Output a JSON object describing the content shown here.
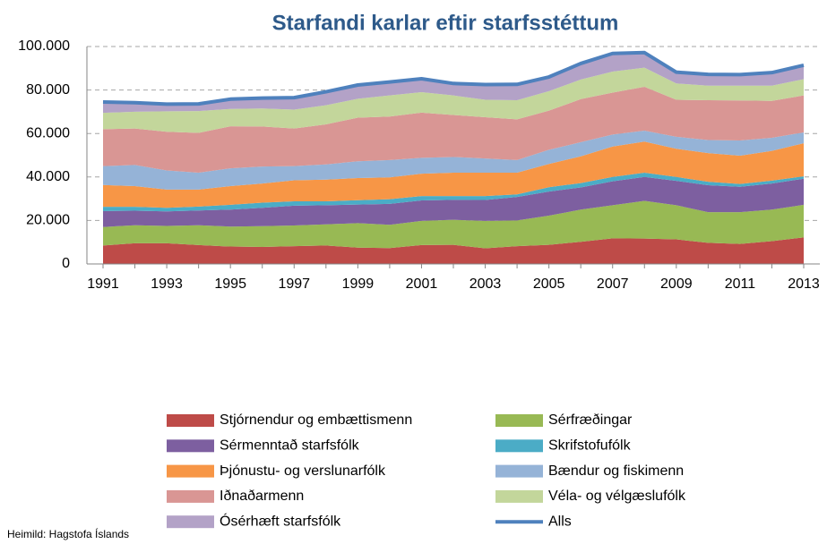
{
  "chart_data": {
    "type": "stacked_area",
    "title": "Starfandi karlar eftir starfsstéttum",
    "note": "Heimild: Hagstofa Íslands",
    "categories": [
      "1991",
      null,
      "1993",
      null,
      "1995",
      null,
      "1997",
      null,
      "1999",
      null,
      "2001",
      null,
      "2003",
      null,
      "2005",
      null,
      "2007",
      null,
      "2009",
      null,
      "2011",
      null,
      "2013"
    ],
    "ylim": [
      0,
      100000
    ],
    "yticks": [
      0,
      {
        "value": 20000,
        "label": "20.000"
      },
      {
        "value": 40000,
        "label": "40.000"
      },
      {
        "value": 60000,
        "label": "60.000"
      },
      {
        "value": 80000,
        "label": "80.000"
      },
      {
        "value": 100000,
        "label": "100.000"
      }
    ],
    "grid": true,
    "series": [
      {
        "name": "Stjórnendur og embættismenn",
        "color": "#be4b48",
        "values": [
          8500,
          9500,
          9500,
          8700,
          8000,
          7800,
          8200,
          8500,
          7500,
          7300,
          8700,
          8800,
          7200,
          8200,
          8800,
          10200,
          11800,
          11700,
          11300,
          9700,
          9200,
          10500,
          12200
        ]
      },
      {
        "name": "Sérfræðingar",
        "color": "#98b954",
        "values": [
          8500,
          8300,
          8000,
          9100,
          9200,
          9600,
          9500,
          9700,
          11300,
          10700,
          11100,
          11500,
          12600,
          11800,
          13400,
          14800,
          15200,
          17300,
          15700,
          14100,
          14600,
          14500,
          15000
        ]
      },
      {
        "name": "Sérmenntað starfsfólk",
        "color": "#7d5fa0",
        "values": [
          7300,
          6700,
          6700,
          6800,
          7800,
          8400,
          9100,
          8800,
          8500,
          9600,
          9400,
          9200,
          9600,
          10800,
          11100,
          10200,
          11000,
          11000,
          11200,
          12400,
          11700,
          12000,
          12000
        ]
      },
      {
        "name": "Skrifstofufólk",
        "color": "#4bacc6",
        "values": [
          2000,
          1800,
          1600,
          1800,
          2200,
          2400,
          2000,
          1800,
          2000,
          2200,
          2000,
          1700,
          1800,
          1200,
          2000,
          2000,
          2000,
          2000,
          1800,
          1600,
          1300,
          1300,
          1100
        ]
      },
      {
        "name": "Þjónustu- og verslunarfólk",
        "color": "#f79646",
        "values": [
          10000,
          9500,
          8400,
          7800,
          8600,
          8800,
          9700,
          10000,
          10200,
          10000,
          10300,
          10800,
          10800,
          10000,
          10700,
          12300,
          14000,
          14300,
          13000,
          13200,
          13000,
          13700,
          15200
        ]
      },
      {
        "name": "Bændur og fiskimenn",
        "color": "#95b3d7",
        "values": [
          8700,
          9700,
          8800,
          7800,
          8200,
          7800,
          6500,
          7000,
          7700,
          8000,
          7300,
          7200,
          6500,
          5800,
          6500,
          6500,
          5500,
          5000,
          5500,
          6000,
          7000,
          6000,
          5000
        ]
      },
      {
        "name": "Iðnaðarmenn",
        "color": "#d99694",
        "values": [
          17000,
          16800,
          17800,
          18300,
          19300,
          18400,
          17300,
          18400,
          20100,
          20000,
          20800,
          19300,
          19000,
          18700,
          18000,
          19800,
          19300,
          20200,
          17000,
          18300,
          18400,
          17000,
          17000
        ]
      },
      {
        "name": "Véla- og vélgæslufólk",
        "color": "#c3d69b",
        "values": [
          7500,
          7700,
          9400,
          10000,
          8000,
          8300,
          8700,
          8800,
          8700,
          9700,
          9400,
          9000,
          8000,
          8800,
          9000,
          9000,
          9700,
          8800,
          7500,
          6700,
          6800,
          7000,
          7500
        ]
      },
      {
        "name": "Ósérhæft starfsfólk",
        "color": "#b3a2c7",
        "values": [
          5000,
          4200,
          3300,
          3300,
          4500,
          4800,
          5500,
          6200,
          6300,
          6200,
          6200,
          5500,
          7000,
          7300,
          6500,
          7400,
          8300,
          6900,
          5200,
          5200,
          5100,
          6000,
          6400
        ]
      }
    ],
    "total": {
      "name": "Alls",
      "color": "#4f81bd",
      "values": [
        74500,
        74200,
        73500,
        73600,
        75800,
        76300,
        76500,
        79200,
        82300,
        83700,
        85200,
        83000,
        82500,
        82600,
        86000,
        92200,
        96800,
        97200,
        88200,
        87200,
        87100,
        88000,
        91400
      ]
    }
  }
}
